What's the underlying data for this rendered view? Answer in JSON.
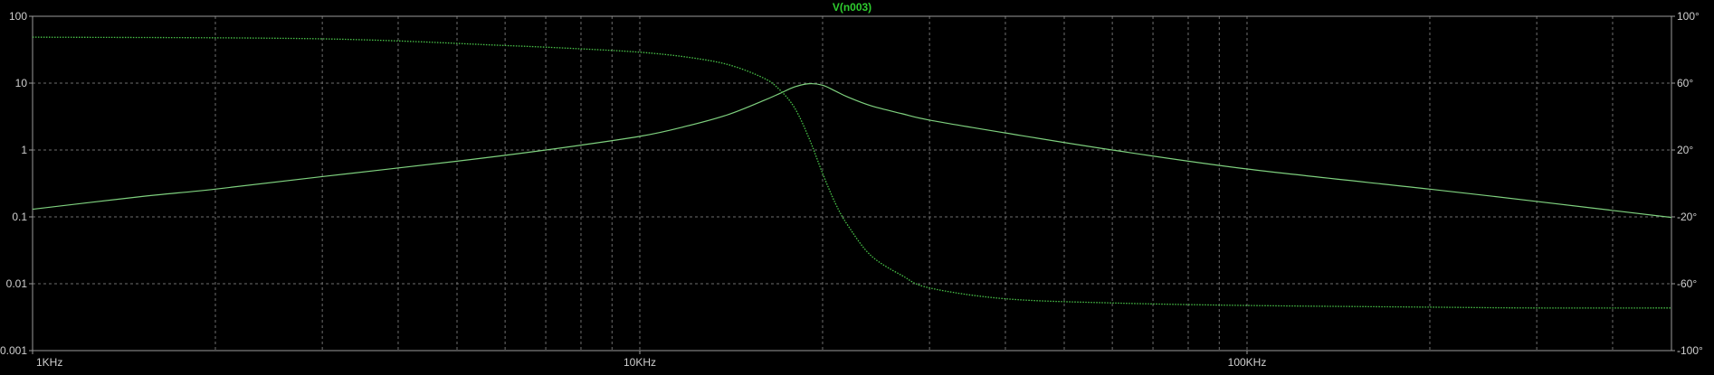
{
  "chart_data": {
    "type": "line",
    "title": "V(n003)",
    "x_scale": "log",
    "xlim": [
      1000,
      500000
    ],
    "x_ticks": [
      {
        "value": 1000,
        "label": "1KHz"
      },
      {
        "value": 10000,
        "label": "10KHz"
      },
      {
        "value": 100000,
        "label": "100KHz"
      }
    ],
    "y_left": {
      "scale": "log",
      "range": [
        0.001,
        100
      ],
      "ticks": [
        {
          "value": 100,
          "label": "100"
        },
        {
          "value": 10,
          "label": "10"
        },
        {
          "value": 1,
          "label": "1"
        },
        {
          "value": 0.1,
          "label": "0.1"
        },
        {
          "value": 0.01,
          "label": "0.01"
        },
        {
          "value": 0.001,
          "label": "0.001"
        }
      ]
    },
    "y_right": {
      "scale": "linear",
      "range": [
        -100,
        100
      ],
      "ticks": [
        {
          "value": 100,
          "label": "100°"
        },
        {
          "value": 60,
          "label": "60°"
        },
        {
          "value": 20,
          "label": "20°"
        },
        {
          "value": -20,
          "label": "-20°"
        },
        {
          "value": -60,
          "label": "-60°"
        },
        {
          "value": -100,
          "label": "-100°"
        }
      ]
    },
    "grid": true,
    "background": "#000000",
    "grid_color": "#6e6e6e",
    "series": [
      {
        "axis": "left",
        "style": "solid",
        "color": "#7ed07e",
        "x": [
          1000,
          1500,
          2000,
          3000,
          5000,
          7000,
          10000,
          12000,
          14000,
          16000,
          17000,
          18000,
          19000,
          20000,
          21000,
          22000,
          24000,
          27000,
          30000,
          40000,
          60000,
          100000,
          200000,
          300000,
          500000
        ],
        "y": [
          0.13,
          0.2,
          0.26,
          0.4,
          0.68,
          1.0,
          1.6,
          2.3,
          3.4,
          5.5,
          7.0,
          8.8,
          9.8,
          9.3,
          7.6,
          6.2,
          4.6,
          3.5,
          2.8,
          1.8,
          1.0,
          0.52,
          0.26,
          0.17,
          0.098
        ]
      },
      {
        "axis": "right",
        "style": "dotted",
        "color": "#49c449",
        "x": [
          1000,
          3000,
          6000,
          8000,
          10000,
          12000,
          14000,
          16000,
          17000,
          18000,
          19000,
          20000,
          21000,
          22000,
          24000,
          27000,
          30000,
          40000,
          60000,
          100000,
          200000,
          300000,
          500000
        ],
        "y": [
          87.5,
          86.5,
          82.5,
          80.5,
          78.5,
          75.5,
          71,
          63,
          56,
          45,
          27,
          6,
          -12,
          -25,
          -43,
          -55,
          -62.5,
          -69,
          -71.5,
          -73,
          -74,
          -74.5,
          -74.5
        ]
      }
    ]
  }
}
